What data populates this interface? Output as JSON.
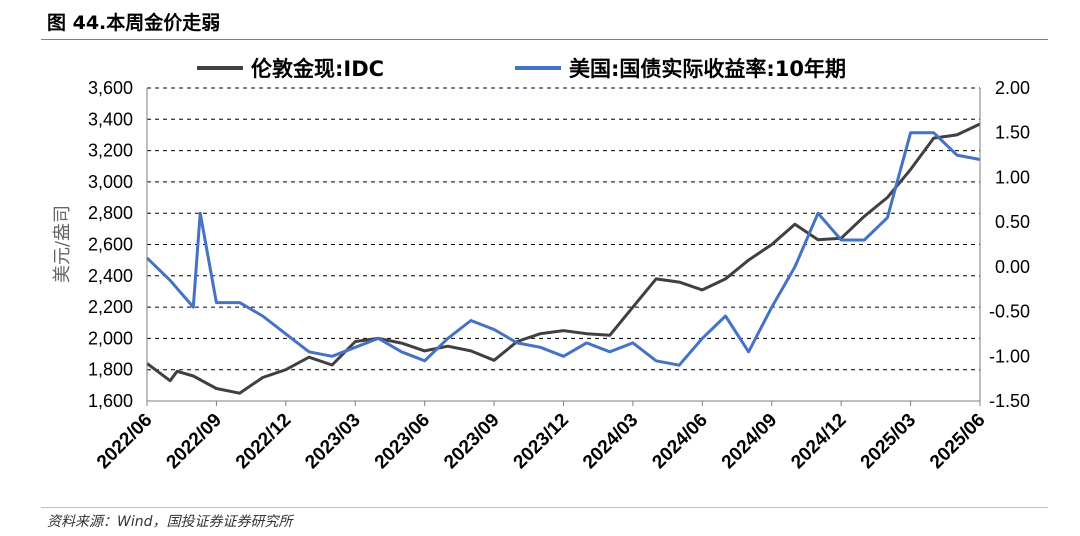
{
  "figure_title": "图 44.本周金价走弱",
  "source": "资料来源：Wind，国投证券证券研究所",
  "chart_data": {
    "type": "line",
    "ylabel": "美元/盎司",
    "left_axis": {
      "range": [
        1600,
        3600
      ],
      "ticks": [
        "1,600",
        "1,800",
        "2,000",
        "2,200",
        "2,400",
        "2,600",
        "2,800",
        "3,000",
        "3,200",
        "3,400",
        "3,600"
      ]
    },
    "right_axis": {
      "range": [
        -1.5,
        2.0
      ],
      "ticks": [
        "-1.50",
        "-1.00",
        "-0.50",
        "0.00",
        "0.50",
        "1.00",
        "1.50",
        "2.00"
      ]
    },
    "x_ticks": [
      "2022/06",
      "2022/09",
      "2022/12",
      "2023/03",
      "2023/06",
      "2023/09",
      "2023/12",
      "2024/03",
      "2024/06",
      "2024/09",
      "2024/12",
      "2025/03",
      "2025/06"
    ],
    "x_range": [
      "2022-06",
      "2025-06"
    ],
    "grid": "horizontal dashed",
    "legend_placement": "top",
    "series": [
      {
        "name": "伦敦金现:IDC",
        "axis": "left",
        "color": "#404040",
        "points": [
          [
            "2022-06",
            1840
          ],
          [
            "2022-07",
            1730
          ],
          [
            "2022-07",
            1790
          ],
          [
            "2022-08",
            1760
          ],
          [
            "2022-09",
            1680
          ],
          [
            "2022-10",
            1650
          ],
          [
            "2022-11",
            1750
          ],
          [
            "2022-12",
            1800
          ],
          [
            "2023-01",
            1880
          ],
          [
            "2023-02",
            1830
          ],
          [
            "2023-03",
            1980
          ],
          [
            "2023-04",
            2000
          ],
          [
            "2023-05",
            1970
          ],
          [
            "2023-06",
            1920
          ],
          [
            "2023-07",
            1950
          ],
          [
            "2023-08",
            1920
          ],
          [
            "2023-09",
            1860
          ],
          [
            "2023-10",
            1980
          ],
          [
            "2023-11",
            2030
          ],
          [
            "2023-12",
            2050
          ],
          [
            "2024-01",
            2030
          ],
          [
            "2024-02",
            2020
          ],
          [
            "2024-03",
            2200
          ],
          [
            "2024-04",
            2380
          ],
          [
            "2024-05",
            2360
          ],
          [
            "2024-06",
            2310
          ],
          [
            "2024-07",
            2380
          ],
          [
            "2024-08",
            2500
          ],
          [
            "2024-09",
            2600
          ],
          [
            "2024-10",
            2730
          ],
          [
            "2024-11",
            2630
          ],
          [
            "2024-12",
            2640
          ],
          [
            "2025-01",
            2780
          ],
          [
            "2025-02",
            2900
          ],
          [
            "2025-03",
            3080
          ],
          [
            "2025-04",
            3280
          ],
          [
            "2025-05",
            3300
          ],
          [
            "2025-06",
            3370
          ]
        ]
      },
      {
        "name": "美国:国债实际收益率:10年期",
        "axis": "right",
        "color": "#4472c4",
        "points": [
          [
            "2022-06",
            0.1
          ],
          [
            "2022-07",
            -0.15
          ],
          [
            "2022-08",
            -0.45
          ],
          [
            "2022-08",
            0.6
          ],
          [
            "2022-09",
            -0.4
          ],
          [
            "2022-10",
            -0.4
          ],
          [
            "2022-11",
            -0.55
          ],
          [
            "2022-12",
            -0.75
          ],
          [
            "2023-01",
            -0.95
          ],
          [
            "2023-02",
            -1.0
          ],
          [
            "2023-03",
            -0.9
          ],
          [
            "2023-04",
            -0.8
          ],
          [
            "2023-05",
            -0.95
          ],
          [
            "2023-06",
            -1.05
          ],
          [
            "2023-07",
            -0.8
          ],
          [
            "2023-08",
            -0.6
          ],
          [
            "2023-09",
            -0.7
          ],
          [
            "2023-10",
            -0.85
          ],
          [
            "2023-11",
            -0.9
          ],
          [
            "2023-12",
            -1.0
          ],
          [
            "2024-01",
            -0.85
          ],
          [
            "2024-02",
            -0.95
          ],
          [
            "2024-03",
            -0.85
          ],
          [
            "2024-04",
            -1.05
          ],
          [
            "2024-05",
            -1.1
          ],
          [
            "2024-06",
            -0.8
          ],
          [
            "2024-07",
            -0.55
          ],
          [
            "2024-08",
            -0.95
          ],
          [
            "2024-09",
            -0.45
          ],
          [
            "2024-10",
            0.0
          ],
          [
            "2024-11",
            0.6
          ],
          [
            "2024-12",
            0.3
          ],
          [
            "2025-01",
            0.3
          ],
          [
            "2025-02",
            0.55
          ],
          [
            "2025-03",
            1.5
          ],
          [
            "2025-04",
            1.5
          ],
          [
            "2025-05",
            1.25
          ],
          [
            "2025-06",
            1.2
          ]
        ]
      }
    ]
  }
}
